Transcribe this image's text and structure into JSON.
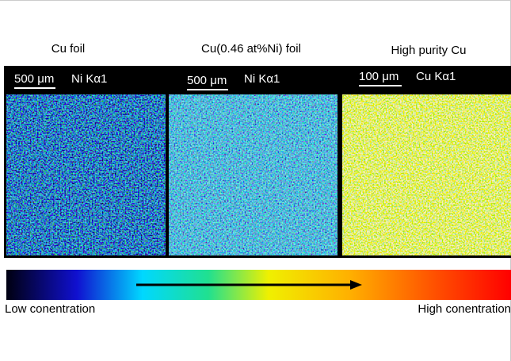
{
  "panels": [
    {
      "title": "Cu foil",
      "scale_bar": "500 μm",
      "signal": "Ni Kα1"
    },
    {
      "title": "Cu(0.46 at%Ni) foil",
      "scale_bar": "500 μm",
      "signal": "Ni Kα1"
    },
    {
      "title": "High purity Cu",
      "scale_bar": "100 μm",
      "signal": "Cu Kα1"
    }
  ],
  "colorbar": {
    "low_label": "Low conentration",
    "high_label": "High conentration"
  }
}
